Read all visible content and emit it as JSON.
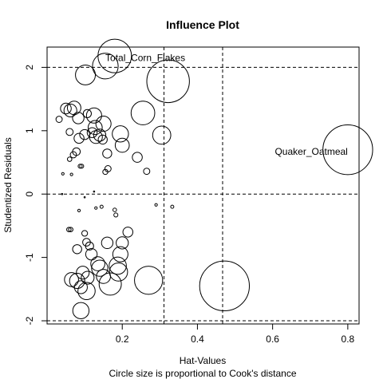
{
  "chart_data": {
    "type": "scatter",
    "title": "Influence Plot",
    "xlabel": "Hat-Values",
    "ylabel": "Studentized Residuals",
    "caption": "Circle size is proportional to Cook's distance",
    "xlim": [
      0.0,
      0.83
    ],
    "ylim": [
      -2.05,
      2.32
    ],
    "xticks": [
      {
        "v": 0.2,
        "label": "0.2"
      },
      {
        "v": 0.4,
        "label": "0.4"
      },
      {
        "v": 0.6,
        "label": "0.6"
      },
      {
        "v": 0.8,
        "label": "0.8"
      }
    ],
    "yticks": [
      {
        "v": -2,
        "label": "-2"
      },
      {
        "v": -1,
        "label": "-1"
      },
      {
        "v": 0,
        "label": "0"
      },
      {
        "v": 1,
        "label": "1"
      },
      {
        "v": 2,
        "label": "2"
      }
    ],
    "reference_lines": {
      "hat_values": [
        0.311,
        0.467
      ],
      "studentized_residuals": [
        -2,
        0,
        2
      ]
    },
    "grid": false,
    "points": [
      {
        "x": 0.032,
        "y": 1.18,
        "cook": 0.012
      },
      {
        "x": 0.062,
        "y": 1.32,
        "cook": 0.05
      },
      {
        "x": 0.072,
        "y": 1.36,
        "cook": 0.055
      },
      {
        "x": 0.05,
        "y": 1.35,
        "cook": 0.035
      },
      {
        "x": 0.06,
        "y": 0.98,
        "cook": 0.015
      },
      {
        "x": 0.083,
        "y": 1.2,
        "cook": 0.04
      },
      {
        "x": 0.1,
        "y": 0.94,
        "cook": 0.03
      },
      {
        "x": 0.107,
        "y": 1.27,
        "cook": 0.02
      },
      {
        "x": 0.12,
        "y": 0.97,
        "cook": 0.03
      },
      {
        "x": 0.125,
        "y": 1.24,
        "cook": 0.07
      },
      {
        "x": 0.128,
        "y": 1.05,
        "cook": 0.06
      },
      {
        "x": 0.13,
        "y": 0.9,
        "cook": 0.05
      },
      {
        "x": 0.14,
        "y": 0.93,
        "cook": 0.045
      },
      {
        "x": 0.15,
        "y": 1.11,
        "cook": 0.07
      },
      {
        "x": 0.148,
        "y": 0.86,
        "cook": 0.025
      },
      {
        "x": 0.085,
        "y": 0.88,
        "cook": 0.03
      },
      {
        "x": 0.07,
        "y": 0.62,
        "cook": 0.012
      },
      {
        "x": 0.078,
        "y": 0.67,
        "cook": 0.018
      },
      {
        "x": 0.06,
        "y": 0.55,
        "cook": 0.006
      },
      {
        "x": 0.088,
        "y": 0.44,
        "cook": 0.005
      },
      {
        "x": 0.092,
        "y": 0.44,
        "cook": 0.005
      },
      {
        "x": 0.16,
        "y": 0.64,
        "cook": 0.025
      },
      {
        "x": 0.162,
        "y": 0.4,
        "cook": 0.012
      },
      {
        "x": 0.155,
        "y": 0.35,
        "cook": 0.008
      },
      {
        "x": 0.195,
        "y": 0.95,
        "cook": 0.08
      },
      {
        "x": 0.2,
        "y": 0.77,
        "cook": 0.06
      },
      {
        "x": 0.24,
        "y": 0.58,
        "cook": 0.03
      },
      {
        "x": 0.265,
        "y": 0.36,
        "cook": 0.012
      },
      {
        "x": 0.255,
        "y": 1.28,
        "cook": 0.17
      },
      {
        "x": 0.305,
        "y": 0.93,
        "cook": 0.1
      },
      {
        "x": 0.102,
        "y": 1.88,
        "cook": 0.12
      },
      {
        "x": 0.155,
        "y": 2.02,
        "cook": 0.2
      },
      {
        "x": 0.18,
        "y": 2.18,
        "cook": 0.34
      },
      {
        "x": 0.322,
        "y": 1.78,
        "cook": 0.55
      },
      {
        "x": 0.042,
        "y": 0.32,
        "cook": 0.002
      },
      {
        "x": 0.065,
        "y": 0.31,
        "cook": 0.002
      },
      {
        "x": 0.04,
        "y": 0.0,
        "cook": 0.0005
      },
      {
        "x": 0.1,
        "y": -0.05,
        "cook": 0.0005
      },
      {
        "x": 0.125,
        "y": 0.04,
        "cook": 0.0005
      },
      {
        "x": 0.13,
        "y": -0.22,
        "cook": 0.002
      },
      {
        "x": 0.145,
        "y": -0.2,
        "cook": 0.003
      },
      {
        "x": 0.18,
        "y": -0.25,
        "cook": 0.004
      },
      {
        "x": 0.183,
        "y": -0.33,
        "cook": 0.005
      },
      {
        "x": 0.085,
        "y": -0.26,
        "cook": 0.002
      },
      {
        "x": 0.29,
        "y": -0.17,
        "cook": 0.002
      },
      {
        "x": 0.333,
        "y": -0.2,
        "cook": 0.003
      },
      {
        "x": 0.058,
        "y": -0.56,
        "cook": 0.006
      },
      {
        "x": 0.063,
        "y": -0.56,
        "cook": 0.006
      },
      {
        "x": 0.1,
        "y": -0.62,
        "cook": 0.01
      },
      {
        "x": 0.105,
        "y": -0.76,
        "cook": 0.018
      },
      {
        "x": 0.113,
        "y": -0.82,
        "cook": 0.02
      },
      {
        "x": 0.08,
        "y": -0.87,
        "cook": 0.025
      },
      {
        "x": 0.118,
        "y": -0.95,
        "cook": 0.04
      },
      {
        "x": 0.16,
        "y": -0.77,
        "cook": 0.04
      },
      {
        "x": 0.2,
        "y": -0.77,
        "cook": 0.045
      },
      {
        "x": 0.215,
        "y": -0.6,
        "cook": 0.03
      },
      {
        "x": 0.195,
        "y": -0.95,
        "cook": 0.07
      },
      {
        "x": 0.135,
        "y": -1.1,
        "cook": 0.06
      },
      {
        "x": 0.14,
        "y": -1.17,
        "cook": 0.08
      },
      {
        "x": 0.15,
        "y": -1.3,
        "cook": 0.06
      },
      {
        "x": 0.188,
        "y": -1.13,
        "cook": 0.09
      },
      {
        "x": 0.19,
        "y": -1.23,
        "cook": 0.1
      },
      {
        "x": 0.108,
        "y": -1.32,
        "cook": 0.05
      },
      {
        "x": 0.095,
        "y": -1.24,
        "cook": 0.05
      },
      {
        "x": 0.065,
        "y": -1.35,
        "cook": 0.06
      },
      {
        "x": 0.08,
        "y": -1.37,
        "cook": 0.07
      },
      {
        "x": 0.09,
        "y": -1.47,
        "cook": 0.05
      },
      {
        "x": 0.105,
        "y": -1.53,
        "cook": 0.09
      },
      {
        "x": 0.168,
        "y": -1.42,
        "cook": 0.15
      },
      {
        "x": 0.27,
        "y": -1.36,
        "cook": 0.24
      },
      {
        "x": 0.09,
        "y": -1.84,
        "cook": 0.08
      },
      {
        "x": 0.472,
        "y": -1.45,
        "cook": 0.75
      },
      {
        "x": 0.8,
        "y": 0.7,
        "cook": 0.75
      }
    ],
    "annotations": [
      {
        "text": "Total_Corn_Flakes",
        "x": 0.155,
        "y": 2.15,
        "anchor": "start"
      },
      {
        "text": "Quaker_Oatmeal",
        "x": 0.8,
        "y": 0.67,
        "anchor": "end"
      }
    ]
  }
}
